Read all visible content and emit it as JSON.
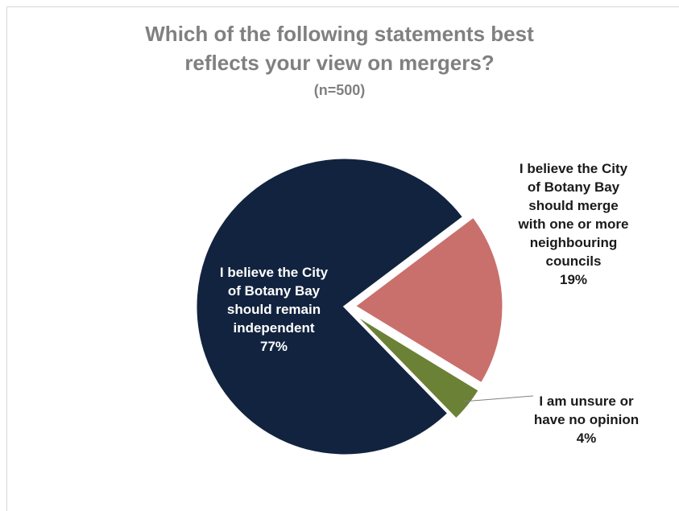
{
  "title": {
    "line1": "Which of the following statements best",
    "line2": "reflects your view on mergers?",
    "sample": "(n=500)"
  },
  "chart_data": {
    "type": "pie",
    "title": "Which of the following statements best reflects your view on mergers? (n=500)",
    "slices": [
      {
        "label": "I believe the City of Botany Bay should remain independent",
        "label_lines": [
          "I believe the City",
          "of Botany Bay",
          "should remain",
          "independent"
        ],
        "value": 77,
        "value_label": "77%",
        "color": "#12233f"
      },
      {
        "label": "I believe the City of Botany Bay should merge with one or more neighbouring councils",
        "label_lines": [
          "I believe the City",
          "of Botany Bay",
          "should merge",
          "with one or more",
          "neighbouring",
          "councils"
        ],
        "value": 19,
        "value_label": "19%",
        "color": "#c9706c"
      },
      {
        "label": "I am unsure or have no opinion",
        "label_lines": [
          "I am unsure or",
          "have no opinion"
        ],
        "value": 4,
        "value_label": "4%",
        "color": "#6b8136"
      }
    ]
  }
}
